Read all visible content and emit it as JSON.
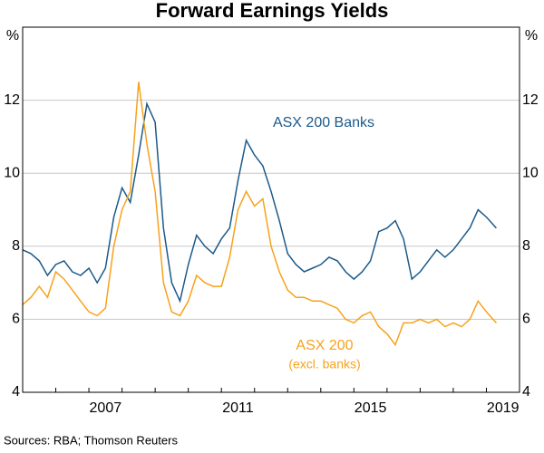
{
  "chart_data": {
    "type": "line",
    "title": "Forward Earnings Yields",
    "y_unit": "%",
    "source": "Sources: RBA; Thomson Reuters",
    "xlim": [
      2005,
      2020
    ],
    "xticks": [
      {
        "value": 2007.5,
        "label": "2007"
      },
      {
        "value": 2011.5,
        "label": "2011"
      },
      {
        "value": 2015.5,
        "label": "2015"
      },
      {
        "value": 2019.5,
        "label": "2019"
      }
    ],
    "ylim": [
      4,
      14
    ],
    "yticks": [
      4,
      6,
      8,
      10,
      12
    ],
    "grid": true,
    "x": [
      2005.0,
      2005.25,
      2005.5,
      2005.75,
      2006.0,
      2006.25,
      2006.5,
      2006.75,
      2007.0,
      2007.25,
      2007.5,
      2007.75,
      2008.0,
      2008.25,
      2008.5,
      2008.75,
      2009.0,
      2009.25,
      2009.5,
      2009.75,
      2010.0,
      2010.25,
      2010.5,
      2010.75,
      2011.0,
      2011.25,
      2011.5,
      2011.75,
      2012.0,
      2012.25,
      2012.5,
      2012.75,
      2013.0,
      2013.25,
      2013.5,
      2013.75,
      2014.0,
      2014.25,
      2014.5,
      2014.75,
      2015.0,
      2015.25,
      2015.5,
      2015.75,
      2016.0,
      2016.25,
      2016.5,
      2016.75,
      2017.0,
      2017.25,
      2017.5,
      2017.75,
      2018.0,
      2018.25,
      2018.5,
      2018.75,
      2019.0,
      2019.3
    ],
    "series": [
      {
        "name": "ASX 200 Banks",
        "color": "#1c5a8a",
        "values": [
          7.9,
          7.8,
          7.6,
          7.2,
          7.5,
          7.6,
          7.3,
          7.2,
          7.4,
          7.0,
          7.4,
          8.8,
          9.6,
          9.2,
          10.5,
          11.9,
          11.4,
          8.5,
          7.0,
          6.5,
          7.5,
          8.3,
          8.0,
          7.8,
          8.2,
          8.5,
          9.8,
          10.9,
          10.5,
          10.2,
          9.5,
          8.7,
          7.8,
          7.5,
          7.3,
          7.4,
          7.5,
          7.7,
          7.6,
          7.3,
          7.1,
          7.3,
          7.6,
          8.4,
          8.5,
          8.7,
          8.2,
          7.1,
          7.3,
          7.6,
          7.9,
          7.7,
          7.9,
          8.2,
          8.5,
          9.0,
          8.8,
          8.5
        ]
      },
      {
        "name": "ASX 200",
        "subname": "(excl. banks)",
        "color": "#f7a21b",
        "values": [
          6.4,
          6.6,
          6.9,
          6.6,
          7.3,
          7.1,
          6.8,
          6.5,
          6.2,
          6.1,
          6.3,
          8.0,
          9.0,
          9.5,
          12.5,
          10.8,
          9.5,
          7.0,
          6.2,
          6.1,
          6.5,
          7.2,
          7.0,
          6.9,
          6.9,
          7.7,
          9.0,
          9.5,
          9.1,
          9.3,
          8.0,
          7.3,
          6.8,
          6.6,
          6.6,
          6.5,
          6.5,
          6.4,
          6.3,
          6.0,
          5.9,
          6.1,
          6.2,
          5.8,
          5.6,
          5.3,
          5.9,
          5.9,
          6.0,
          5.9,
          6.0,
          5.8,
          5.9,
          5.8,
          6.0,
          6.5,
          6.2,
          5.9
        ]
      }
    ]
  }
}
